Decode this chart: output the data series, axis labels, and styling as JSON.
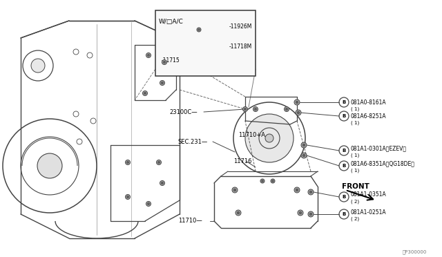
{
  "bg_color": "#ffffff",
  "fig_width": 6.4,
  "fig_height": 3.72,
  "dpi": 100,
  "labels": {
    "wdac_box": "W/□A/C",
    "part_11926M": "-11926M",
    "part_11718M": "-11718M",
    "part_11715": "-11715",
    "part_23100C": "23100C—",
    "part_11710A": "11710+A",
    "part_sec231": "SEC.231—",
    "part_11716": "11716",
    "part_11710": "11710—",
    "bolt_081A0_8161A": "081A0-8161A",
    "bolt_081A6_8251A": "081A6-8251A",
    "bolt_081A1_0301A": "081A1-0301A〈EZEV〉",
    "bolt_081A6_8351A": "081A6-8351A〈QG18DE〉",
    "bolt_081A1_0351A": "081A1-0351A",
    "bolt_081A1_0251A": "081A1-0251A",
    "qty_1": "( 1)",
    "qty_2": "( 2)",
    "front_label": "FRONT",
    "diagram_code": "〈P300000"
  },
  "lc": "#444444",
  "tc": "#000000",
  "fs": 6.5,
  "fs_s": 5.5
}
